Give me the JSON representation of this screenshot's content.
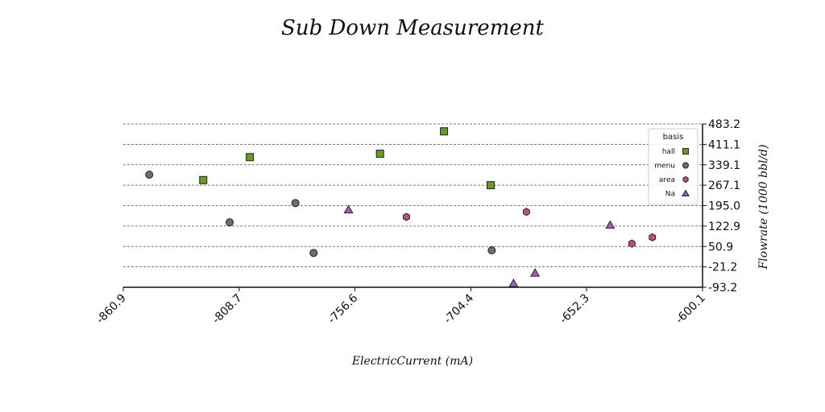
{
  "chart_data": {
    "type": "scatter",
    "title": "Sub Down Measurement",
    "xlabel": "ElectricCurrent (mA)",
    "ylabel": "Flowrate (1000 bbl/d)",
    "xlim": [
      -860.9,
      -600.1
    ],
    "ylim": [
      -93.2,
      483.2
    ],
    "x_ticks": [
      "-860.9",
      "-808.7",
      "-756.6",
      "-704.4",
      "-652.3",
      "-600.1"
    ],
    "y_ticks": [
      "-93.2",
      "-21.2",
      "50.9",
      "122.9",
      "195.0",
      "267.1",
      "339.1",
      "411.1",
      "483.2"
    ],
    "grid": "horizontal dashed",
    "legend": {
      "title": "basis",
      "placement": "upper-right"
    },
    "series": [
      {
        "name": "hall",
        "marker": "square",
        "color": "#6b9a1f",
        "points": [
          {
            "x": -824.9,
            "y": 285
          },
          {
            "x": -803.9,
            "y": 366
          },
          {
            "x": -745.3,
            "y": 378
          },
          {
            "x": -716.5,
            "y": 457
          },
          {
            "x": -695.5,
            "y": 267
          }
        ]
      },
      {
        "name": "menu",
        "marker": "circle",
        "color": "#6e6e6e",
        "points": [
          {
            "x": -849.2,
            "y": 304
          },
          {
            "x": -813.0,
            "y": 136
          },
          {
            "x": -783.4,
            "y": 204
          },
          {
            "x": -775.2,
            "y": 28
          },
          {
            "x": -695.0,
            "y": 37
          }
        ]
      },
      {
        "name": "area",
        "marker": "hexagon",
        "color": "#c0508a",
        "points": [
          {
            "x": -733.4,
            "y": 155
          },
          {
            "x": -679.4,
            "y": 173
          },
          {
            "x": -631.9,
            "y": 61
          },
          {
            "x": -622.7,
            "y": 83
          }
        ]
      },
      {
        "name": "Na",
        "marker": "triangle",
        "color": "#9a5fc8",
        "points": [
          {
            "x": -759.5,
            "y": 180
          },
          {
            "x": -685.2,
            "y": -80
          },
          {
            "x": -675.5,
            "y": -43
          },
          {
            "x": -641.7,
            "y": 126
          }
        ]
      }
    ]
  }
}
